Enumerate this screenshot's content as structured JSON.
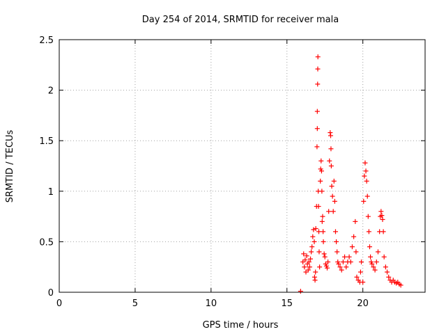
{
  "chart_data": {
    "type": "scatter",
    "title": "Day 254 of 2014, SRMTID for receiver mala",
    "xlabel": "GPS time / hours",
    "ylabel": "SRMTID / TECUs",
    "xlim": [
      0,
      24.1
    ],
    "ylim": [
      0,
      2.5
    ],
    "x_ticks": [
      0,
      5,
      10,
      15,
      20
    ],
    "y_ticks": [
      0,
      0.5,
      1,
      1.5,
      2,
      2.5
    ],
    "x_tick_labels": [
      "0",
      "5",
      "10",
      "15",
      "20"
    ],
    "y_tick_labels": [
      "0",
      "0.5",
      "1",
      "1.5",
      "2",
      "2.5"
    ],
    "grid": true,
    "marker": "+",
    "marker_color": "#ff0000",
    "series": [
      {
        "name": "SRMTID",
        "points": [
          [
            15.9,
            0.01
          ],
          [
            16.05,
            0.3
          ],
          [
            16.1,
            0.38
          ],
          [
            16.15,
            0.25
          ],
          [
            16.2,
            0.32
          ],
          [
            16.25,
            0.2
          ],
          [
            16.3,
            0.36
          ],
          [
            16.35,
            0.28
          ],
          [
            16.4,
            0.22
          ],
          [
            16.45,
            0.3
          ],
          [
            16.5,
            0.25
          ],
          [
            16.55,
            0.33
          ],
          [
            16.6,
            0.4
          ],
          [
            16.65,
            0.45
          ],
          [
            16.7,
            0.55
          ],
          [
            16.75,
            0.62
          ],
          [
            16.8,
            0.5
          ],
          [
            16.82,
            0.15
          ],
          [
            16.85,
            0.12
          ],
          [
            16.88,
            0.2
          ],
          [
            16.9,
            0.63
          ],
          [
            16.95,
            0.85
          ],
          [
            16.98,
            1.44
          ],
          [
            17.0,
            1.62
          ],
          [
            17.0,
            1.79
          ],
          [
            17.02,
            2.06
          ],
          [
            17.03,
            2.21
          ],
          [
            17.04,
            2.33
          ],
          [
            17.06,
            1.0
          ],
          [
            17.08,
            0.85
          ],
          [
            17.1,
            0.6
          ],
          [
            17.12,
            0.4
          ],
          [
            17.15,
            0.25
          ],
          [
            17.2,
            1.1
          ],
          [
            17.22,
            1.22
          ],
          [
            17.25,
            1.3
          ],
          [
            17.28,
            1.2
          ],
          [
            17.3,
            1.0
          ],
          [
            17.32,
            0.7
          ],
          [
            17.35,
            0.75
          ],
          [
            17.38,
            0.6
          ],
          [
            17.4,
            0.5
          ],
          [
            17.45,
            0.38
          ],
          [
            17.5,
            0.35
          ],
          [
            17.55,
            0.28
          ],
          [
            17.6,
            0.26
          ],
          [
            17.65,
            0.24
          ],
          [
            17.7,
            0.3
          ],
          [
            17.75,
            0.8
          ],
          [
            17.8,
            1.3
          ],
          [
            17.85,
            1.58
          ],
          [
            17.88,
            1.55
          ],
          [
            17.9,
            1.42
          ],
          [
            17.92,
            1.25
          ],
          [
            17.95,
            1.05
          ],
          [
            18.0,
            0.95
          ],
          [
            18.05,
            0.8
          ],
          [
            18.1,
            1.1
          ],
          [
            18.15,
            0.9
          ],
          [
            18.2,
            0.6
          ],
          [
            18.25,
            0.5
          ],
          [
            18.3,
            0.4
          ],
          [
            18.35,
            0.3
          ],
          [
            18.4,
            0.28
          ],
          [
            18.5,
            0.25
          ],
          [
            18.6,
            0.22
          ],
          [
            18.7,
            0.3
          ],
          [
            18.8,
            0.35
          ],
          [
            18.9,
            0.25
          ],
          [
            19.0,
            0.3
          ],
          [
            19.1,
            0.35
          ],
          [
            19.2,
            0.3
          ],
          [
            19.3,
            0.45
          ],
          [
            19.4,
            0.55
          ],
          [
            19.5,
            0.7
          ],
          [
            19.55,
            0.4
          ],
          [
            19.6,
            0.15
          ],
          [
            19.7,
            0.12
          ],
          [
            19.8,
            0.1
          ],
          [
            19.85,
            0.2
          ],
          [
            19.9,
            0.3
          ],
          [
            20.0,
            0.1
          ],
          [
            20.05,
            0.9
          ],
          [
            20.1,
            1.15
          ],
          [
            20.15,
            1.28
          ],
          [
            20.2,
            1.2
          ],
          [
            20.25,
            1.1
          ],
          [
            20.3,
            0.95
          ],
          [
            20.35,
            0.75
          ],
          [
            20.4,
            0.6
          ],
          [
            20.45,
            0.45
          ],
          [
            20.5,
            0.35
          ],
          [
            20.55,
            0.3
          ],
          [
            20.6,
            0.28
          ],
          [
            20.7,
            0.25
          ],
          [
            20.8,
            0.22
          ],
          [
            20.9,
            0.3
          ],
          [
            21.0,
            0.4
          ],
          [
            21.1,
            0.6
          ],
          [
            21.15,
            0.75
          ],
          [
            21.2,
            0.8
          ],
          [
            21.25,
            0.76
          ],
          [
            21.3,
            0.72
          ],
          [
            21.35,
            0.6
          ],
          [
            21.4,
            0.35
          ],
          [
            21.5,
            0.25
          ],
          [
            21.6,
            0.2
          ],
          [
            21.7,
            0.15
          ],
          [
            21.8,
            0.12
          ],
          [
            21.9,
            0.1
          ],
          [
            22.0,
            0.12
          ],
          [
            22.1,
            0.1
          ],
          [
            22.2,
            0.09
          ],
          [
            22.3,
            0.1
          ],
          [
            22.4,
            0.08
          ],
          [
            22.5,
            0.07
          ]
        ]
      }
    ]
  }
}
